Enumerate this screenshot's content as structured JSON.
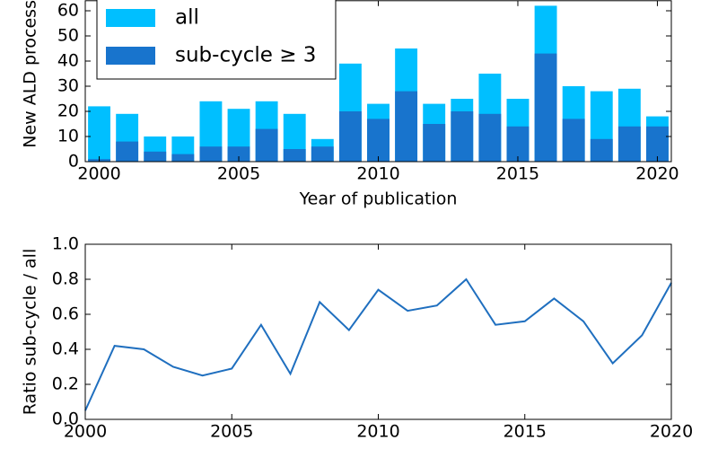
{
  "chart_data": [
    {
      "type": "bar",
      "x": [
        2000,
        2001,
        2002,
        2003,
        2004,
        2005,
        2006,
        2007,
        2008,
        2009,
        2010,
        2011,
        2012,
        2013,
        2014,
        2015,
        2016,
        2017,
        2018,
        2019,
        2020
      ],
      "series": [
        {
          "name": "all",
          "color": "#00bfff",
          "values": [
            22,
            19,
            10,
            10,
            24,
            21,
            24,
            19,
            9,
            39,
            23,
            45,
            23,
            25,
            35,
            25,
            62,
            30,
            28,
            29,
            18
          ]
        },
        {
          "name": "sub-cycle ≥ 3",
          "color": "#1874cd",
          "values": [
            1,
            8,
            4,
            3,
            6,
            6,
            13,
            5,
            6,
            20,
            17,
            28,
            15,
            20,
            19,
            14,
            43,
            17,
            9,
            14,
            14
          ]
        }
      ],
      "xlim": [
        1999.5,
        2020.5
      ],
      "ylim": [
        0,
        64
      ],
      "xticks": [
        2000,
        2005,
        2010,
        2015,
        2020
      ],
      "yticks": [
        0,
        10,
        20,
        30,
        40,
        50,
        60
      ],
      "xlabel": "Year of publication",
      "ylabel": "New ALD process",
      "legend": "upper left"
    },
    {
      "type": "line",
      "x": [
        2000,
        2001,
        2002,
        2003,
        2004,
        2005,
        2006,
        2007,
        2008,
        2009,
        2010,
        2011,
        2012,
        2013,
        2014,
        2015,
        2016,
        2017,
        2018,
        2019,
        2020
      ],
      "values": [
        0.05,
        0.42,
        0.4,
        0.3,
        0.25,
        0.29,
        0.54,
        0.26,
        0.67,
        0.51,
        0.74,
        0.62,
        0.65,
        0.8,
        0.54,
        0.56,
        0.69,
        0.56,
        0.32,
        0.48,
        0.78
      ],
      "color": "#1f6fbf",
      "xlim": [
        2000,
        2020
      ],
      "ylim": [
        0,
        1
      ],
      "xticks": [
        2000,
        2005,
        2010,
        2015,
        2020
      ],
      "yticks": [
        {
          "value": 0,
          "label": "0.0"
        },
        {
          "value": 0.2,
          "label": "0.2"
        },
        {
          "value": 0.4,
          "label": "0.4"
        },
        {
          "value": 0.6,
          "label": "0.6"
        },
        {
          "value": 0.8,
          "label": "0.8"
        },
        {
          "value": 1,
          "label": "1.0"
        }
      ],
      "ylabel": "Ratio sub-cycle / all"
    }
  ]
}
